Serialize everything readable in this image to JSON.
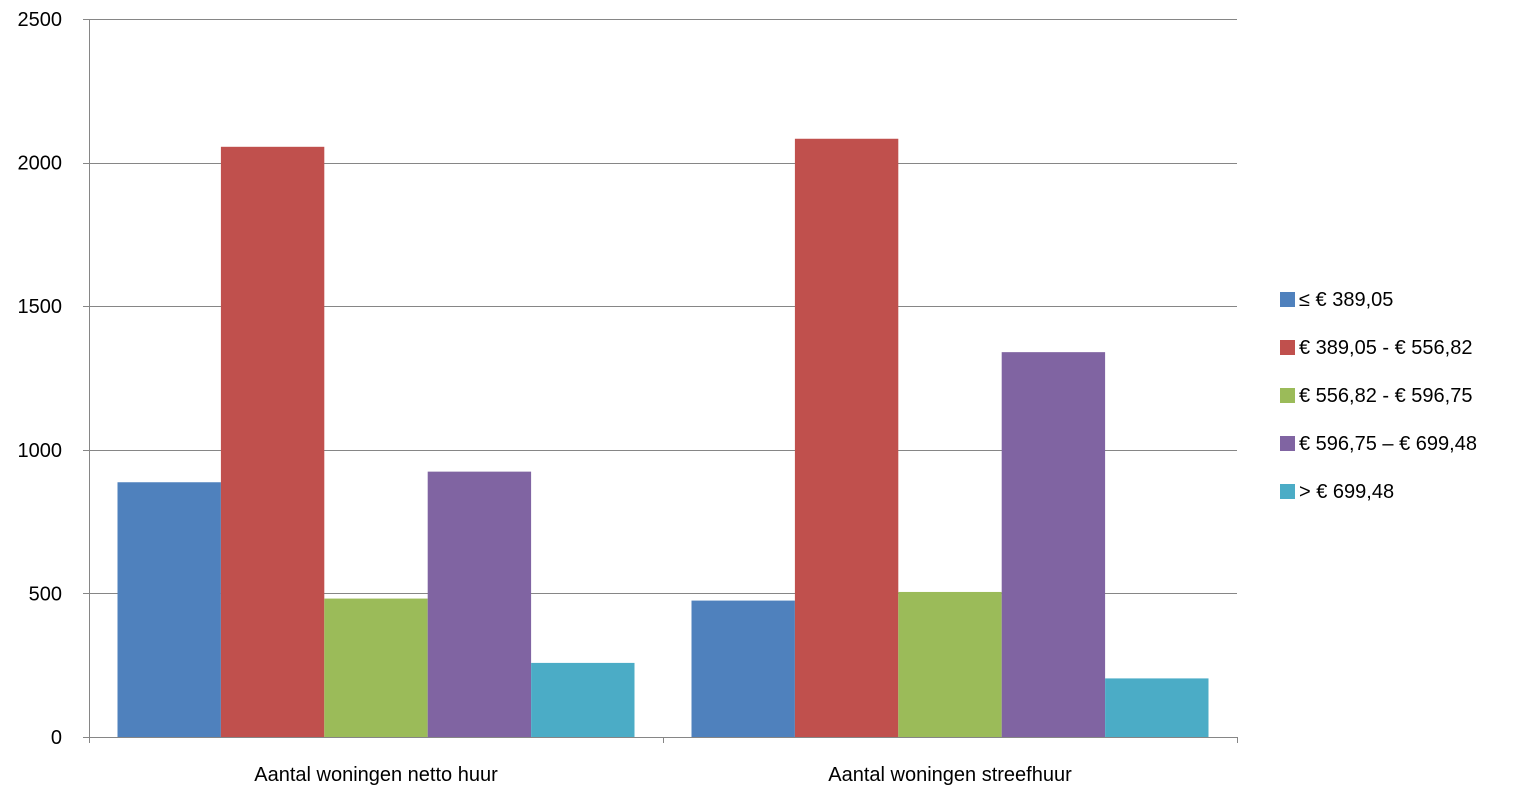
{
  "chart_data": {
    "type": "bar",
    "title": "",
    "xlabel": "",
    "ylabel": "",
    "categories": [
      "Aantal woningen netto huur",
      "Aantal woningen streefhuur"
    ],
    "series": [
      {
        "name": "≤ € 389,05",
        "color": "#4F81BD",
        "values": [
          887,
          475
        ]
      },
      {
        "name": "€ 389,05 - € 556,82",
        "color": "#C0504D",
        "values": [
          2055,
          2083
        ]
      },
      {
        "name": "€ 556,82 - € 596,75",
        "color": "#9BBB59",
        "values": [
          482,
          505
        ]
      },
      {
        "name": "€ 596,75 – € 699,48",
        "color": "#8064A2",
        "values": [
          924,
          1340
        ]
      },
      {
        "name": "> € 699,48",
        "color": "#4BACC6",
        "values": [
          258,
          204
        ]
      }
    ],
    "ylim": [
      0,
      2500
    ],
    "yticks": [
      0,
      500,
      1000,
      1500,
      2000,
      2500
    ],
    "grid": true,
    "legend_position": "right"
  }
}
